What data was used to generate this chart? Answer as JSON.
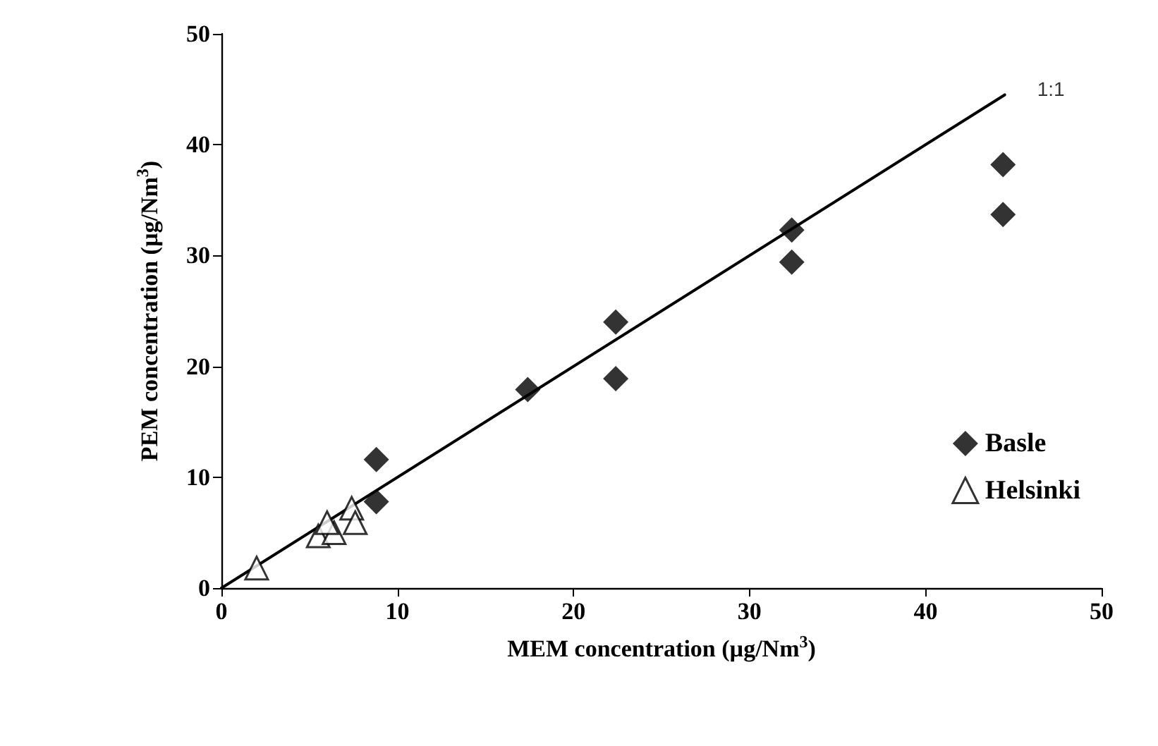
{
  "chart_data": {
    "type": "scatter",
    "xlabel": "MEM concentration (µg/Nm$^{3}$)",
    "ylabel": "PEM concentration (µg/Nm$^{3}$)",
    "xlim": [
      0,
      50
    ],
    "xticks": [
      0,
      10,
      20,
      30,
      40,
      50
    ],
    "ylim": [
      0,
      50
    ],
    "yticks": [
      0,
      10,
      20,
      30,
      40,
      50
    ],
    "grid": false,
    "legend": "right",
    "series": [
      {
        "name": "Basle",
        "color": "#000000",
        "marker": "diamond",
        "x": [
          8.8,
          8.8,
          17.4,
          22.4,
          22.4,
          32.4,
          32.4,
          44.4,
          44.4
        ],
        "values": [
          11.6,
          7.8,
          17.9,
          24.0,
          18.9,
          32.3,
          29.4,
          38.2,
          33.7
        ]
      },
      {
        "name": "Helsinki",
        "color": "#ffffff",
        "marker": "triangle",
        "x": [
          2.0,
          5.5,
          6.4,
          6.0,
          7.4,
          7.6
        ],
        "values": [
          1.8,
          4.7,
          5.0,
          5.9,
          7.2,
          5.9
        ]
      },
      {
        "type": "line",
        "color": "#000000",
        "marker": "none",
        "line_style": "solid",
        "x": [
          0,
          44.5
        ],
        "values": [
          0,
          44.5
        ]
      }
    ],
    "annotations": [
      {
        "text": "1:1",
        "x": 44.5,
        "y": 44.5
      }
    ]
  }
}
